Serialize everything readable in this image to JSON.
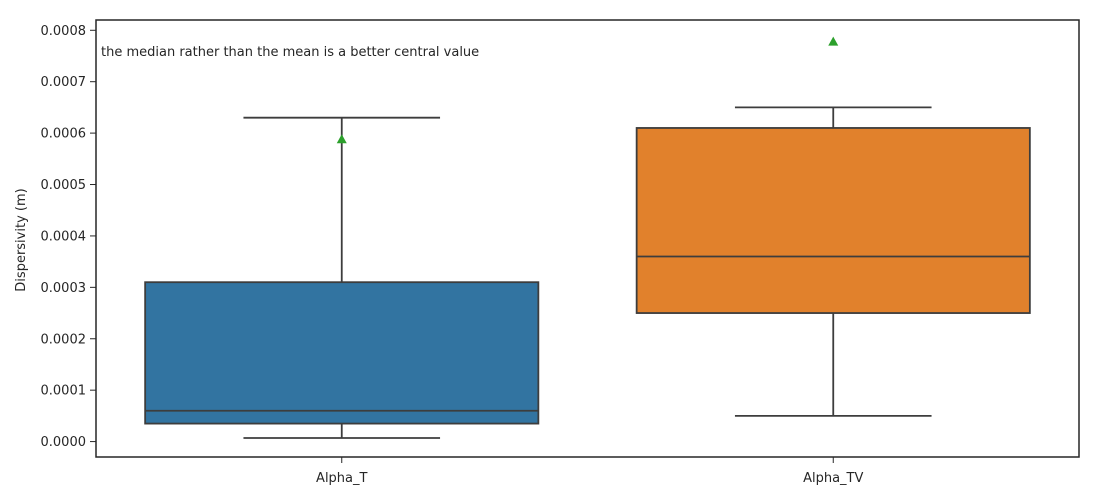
{
  "chart_data": {
    "type": "box",
    "categories": [
      "Alpha_T",
      "Alpha_TV"
    ],
    "xlabel": "",
    "ylabel": "Dispersivity (m)",
    "ylim": [
      -3e-05,
      0.00082
    ],
    "yticks": [
      "0.0000",
      "0.0001",
      "0.0002",
      "0.0003",
      "0.0004",
      "0.0005",
      "0.0006",
      "0.0007",
      "0.0008"
    ],
    "ytick_values": [
      0,
      0.0001,
      0.0002,
      0.0003,
      0.0004,
      0.0005,
      0.0006,
      0.0007,
      0.0008
    ],
    "annotation": "the median rather than the mean is a better central value",
    "boxes": [
      {
        "category": "Alpha_T",
        "whisker_low": 7e-06,
        "q1": 3.5e-05,
        "median": 6e-05,
        "q3": 0.00031,
        "whisker_high": 0.00063,
        "mean": 0.000588,
        "color": "#3274a1"
      },
      {
        "category": "Alpha_TV",
        "whisker_low": 5e-05,
        "q1": 0.00025,
        "median": 0.00036,
        "q3": 0.00061,
        "whisker_high": 0.00065,
        "mean": 0.000778,
        "color": "#e1812c"
      }
    ],
    "mean_marker_color": "#2ca02c",
    "grid": false
  }
}
